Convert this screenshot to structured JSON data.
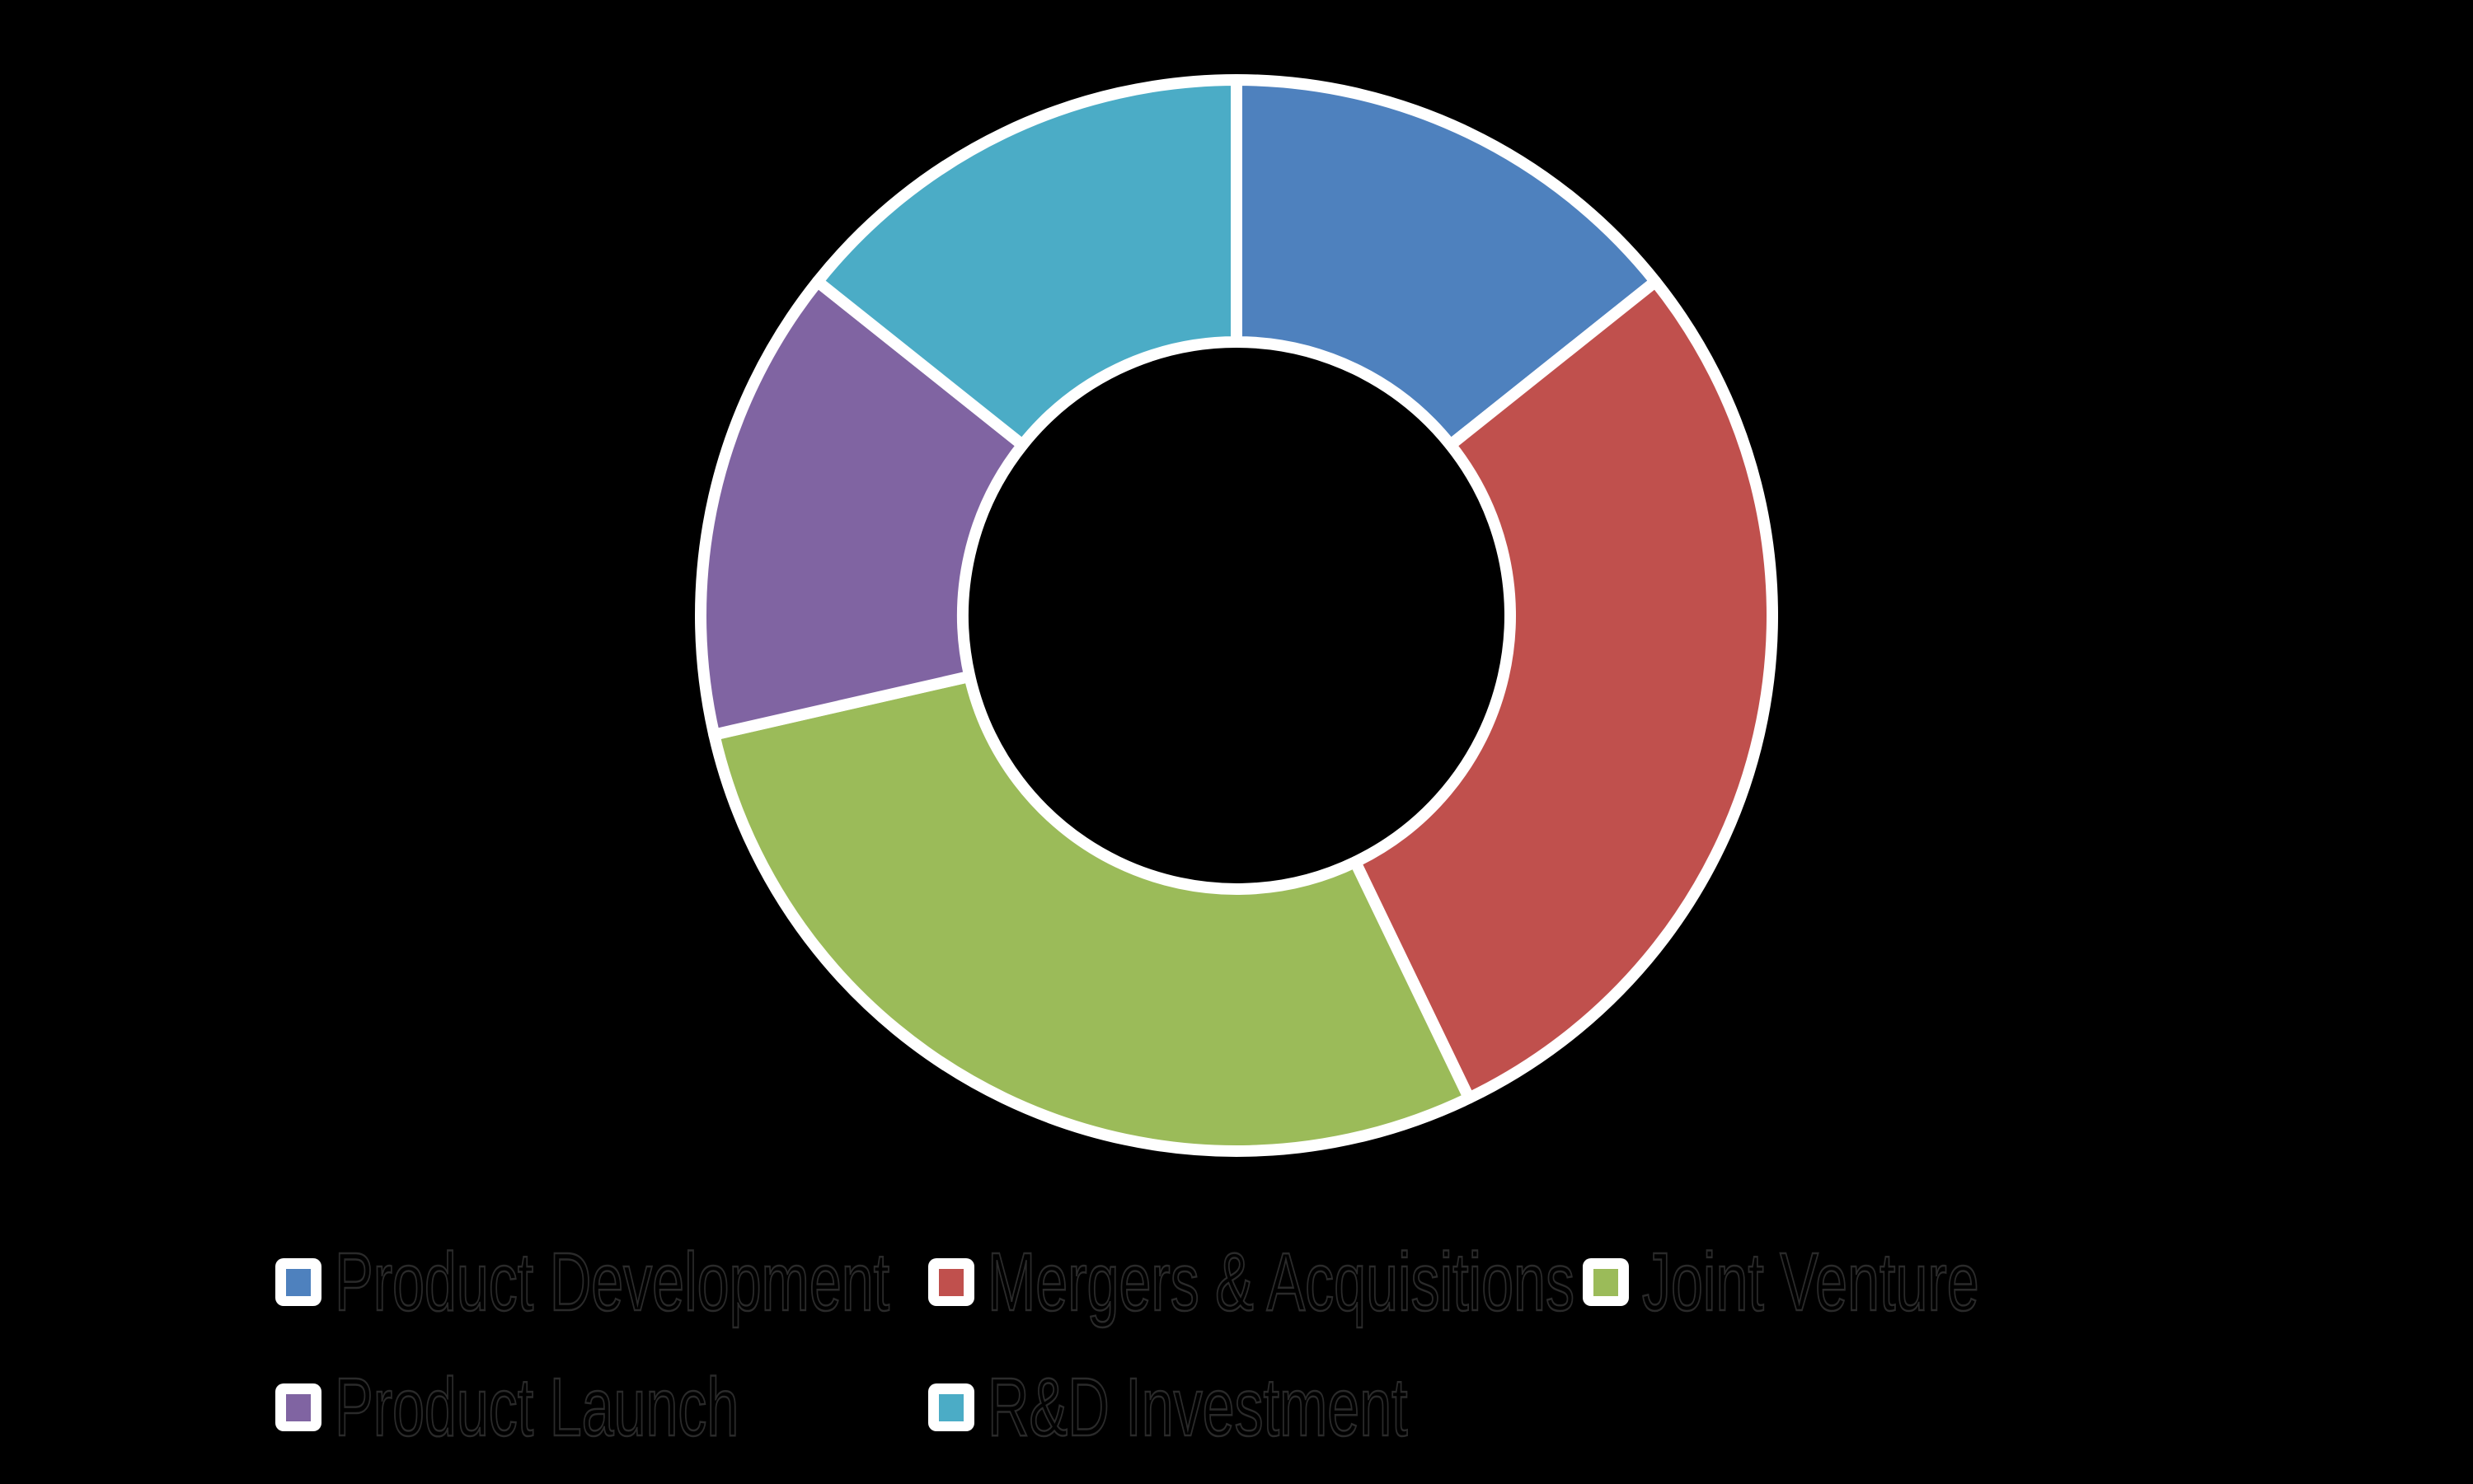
{
  "chart_data": {
    "type": "pie",
    "subtype": "donut",
    "title": "",
    "categories": [
      "Product Development",
      "Mergers & Acquisitions",
      "Joint Venture",
      "Product Launch",
      "R&D Investment"
    ],
    "values": [
      14.3,
      28.6,
      28.6,
      14.3,
      14.3
    ],
    "values_unit": "percent-share-estimated-from-arc-angles",
    "value_labels_shown": false,
    "colors": [
      "#4E81BE",
      "#C0504D",
      "#9BBB59",
      "#8064A2",
      "#4BACC6"
    ],
    "segment_outline_color": "#FFFFFF",
    "background_color": "#000000",
    "start_angle_deg": 0,
    "direction": "clockwise",
    "inner_radius_ratio": 0.51,
    "legend_position": "bottom",
    "legend_marker_background": "#FFFFFF",
    "legend_text_color": "#000000"
  }
}
